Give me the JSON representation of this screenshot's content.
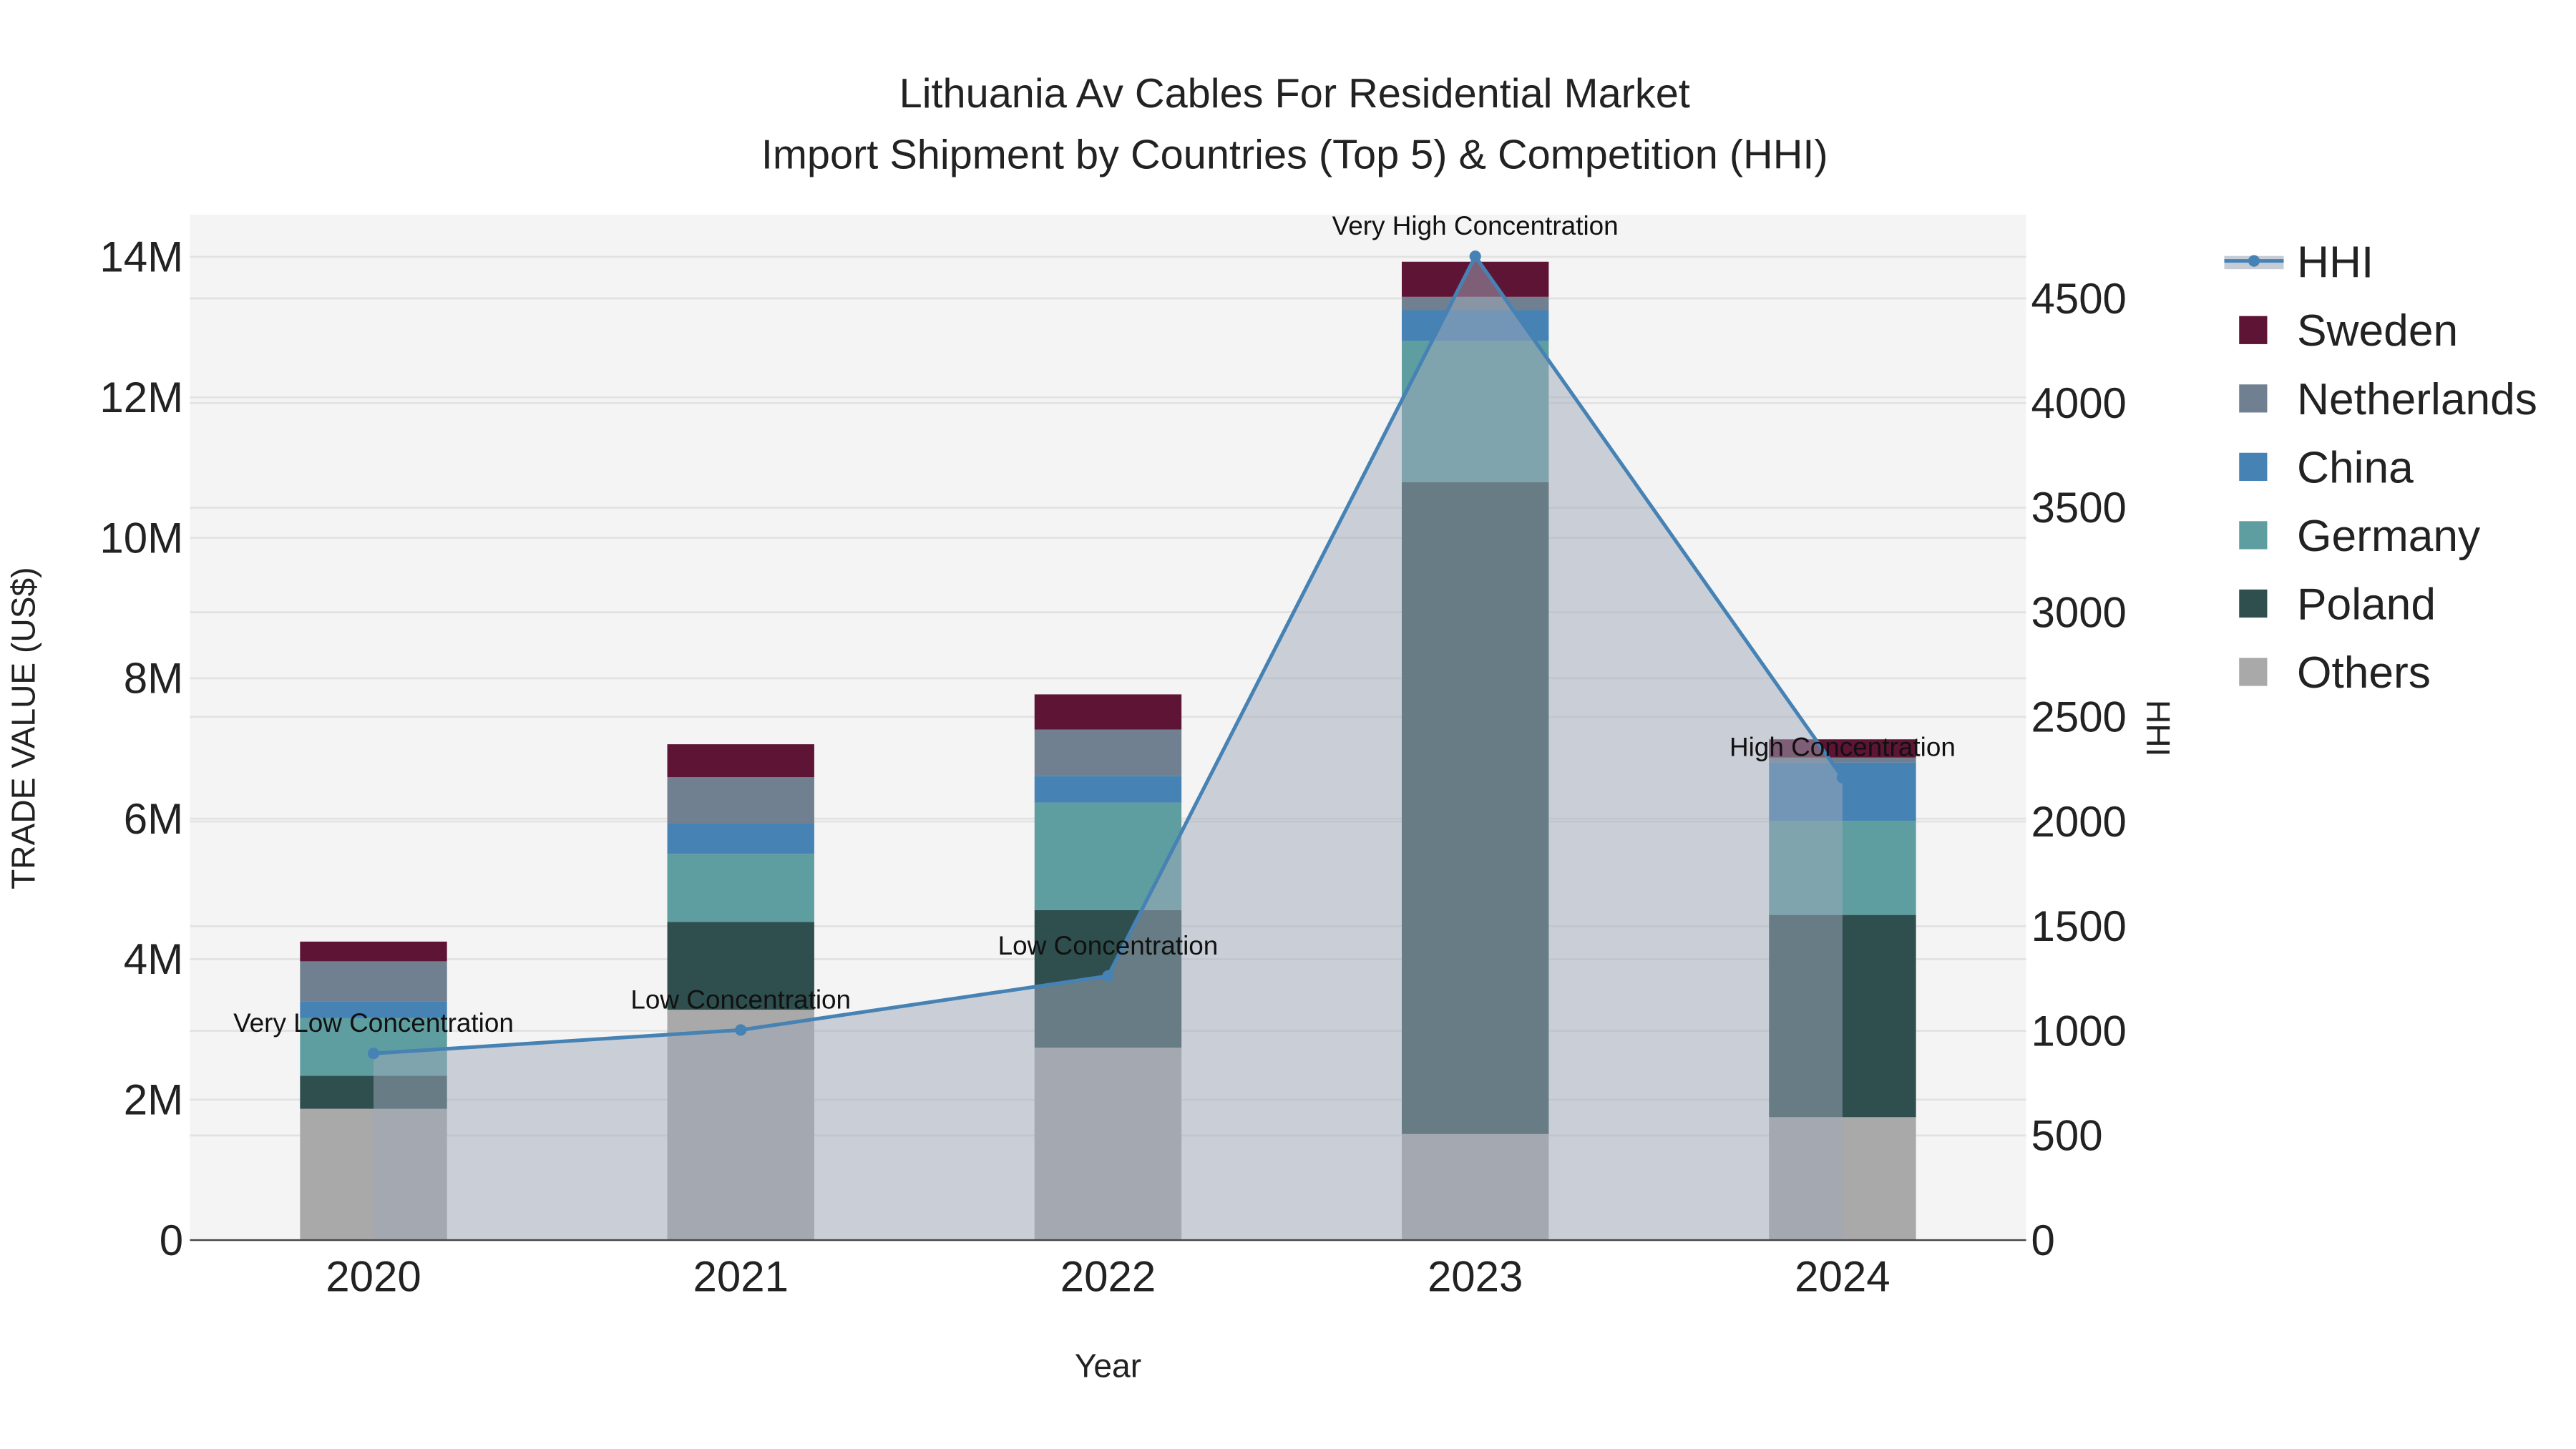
{
  "chart_data": {
    "type": "bar",
    "title": "Lithuania Av Cables For Residential Market",
    "subtitle": "Import Shipment by Countries (Top 5) & Competition (HHI)",
    "xlabel": "Year",
    "ylabel": "TRADE VALUE (US$)",
    "y2label": "HHI",
    "categories": [
      "2020",
      "2021",
      "2022",
      "2023",
      "2024"
    ],
    "ylim": [
      0,
      14600000
    ],
    "y2lim": [
      0,
      4900
    ],
    "yticks": [
      {
        "v": 0,
        "l": "0"
      },
      {
        "v": 2000000,
        "l": "2M"
      },
      {
        "v": 4000000,
        "l": "4M"
      },
      {
        "v": 6000000,
        "l": "6M"
      },
      {
        "v": 8000000,
        "l": "8M"
      },
      {
        "v": 10000000,
        "l": "10M"
      },
      {
        "v": 12000000,
        "l": "12M"
      },
      {
        "v": 14000000,
        "l": "14M"
      }
    ],
    "y2ticks": [
      0,
      500,
      1000,
      1500,
      2000,
      2500,
      3000,
      3500,
      4000,
      4500
    ],
    "stack_order": [
      "Others",
      "Poland",
      "Germany",
      "China",
      "Netherlands",
      "Sweden"
    ],
    "series": [
      {
        "name": "Others",
        "color": "#a9a9a9",
        "values": [
          1870000,
          3280000,
          2740000,
          1510000,
          1750000
        ]
      },
      {
        "name": "Poland",
        "color": "#2f4f4f",
        "values": [
          470000,
          1250000,
          1960000,
          9280000,
          2880000
        ]
      },
      {
        "name": "Germany",
        "color": "#5f9ea0",
        "values": [
          820000,
          970000,
          1530000,
          2010000,
          1340000
        ]
      },
      {
        "name": "China",
        "color": "#4682b4",
        "values": [
          240000,
          430000,
          380000,
          440000,
          830000
        ]
      },
      {
        "name": "Netherlands",
        "color": "#708090",
        "values": [
          570000,
          660000,
          660000,
          190000,
          70000
        ]
      },
      {
        "name": "Sweden",
        "color": "#5e1535",
        "values": [
          280000,
          470000,
          500000,
          500000,
          260000
        ]
      }
    ],
    "hhi": {
      "name": "HHI",
      "color": "#4682b4",
      "values": [
        892,
        1004,
        1262,
        4701,
        2210
      ],
      "labels": [
        "Very Low Concentration",
        "Low Concentration",
        "Low Concentration",
        "Very High Concentration",
        "High Concentration"
      ]
    },
    "legend": [
      "HHI",
      "Sweden",
      "Netherlands",
      "China",
      "Germany",
      "Poland",
      "Others"
    ],
    "legend_position": "right",
    "grid": true
  }
}
